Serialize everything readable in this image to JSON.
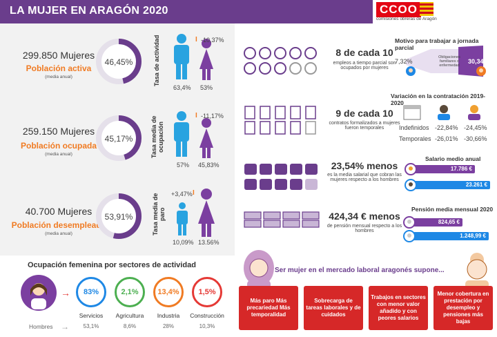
{
  "header": {
    "title": "LA MUJER EN ARAGÓN 2020",
    "logo_text": "CCOO",
    "logo_sub": "comisiones obreras de Aragón"
  },
  "blocks": [
    {
      "number": "299.850 Mujeres",
      "label": "Población activa",
      "note": "(media anual)",
      "donut": "46,45%",
      "donut_value": 46.45,
      "rate_label": "Tasa de actividad",
      "men": "63,4%",
      "women": "53%",
      "gap": "-10,37%"
    },
    {
      "number": "259.150 Mujeres",
      "label": "Población ocupada",
      "note": "(media anual)",
      "donut": "45,17%",
      "donut_value": 45.17,
      "rate_label": "Tasa media de ocupación",
      "men": "57%",
      "women": "45,83%",
      "gap": "-11,17%"
    },
    {
      "number": "40.700 Mujeres",
      "label": "Población desempleada",
      "note": "(media anual)",
      "donut": "53,91%",
      "donut_value": 53.91,
      "rate_label": "Tasa media de paro",
      "men": "10,09%",
      "women": "13.56%",
      "gap": "+3,47%"
    }
  ],
  "stats": [
    {
      "headline": "8 de cada 10",
      "sub": "empleos a tiempo parcial son ocupados por mujeres",
      "icon": "clock-icon"
    },
    {
      "headline": "9 de cada 10",
      "sub": "contratos formalizados a mujeres fueron temporales",
      "icon": "document-icon"
    },
    {
      "headline": "23,54% menos",
      "sub": "es la media salarial que cobran las mujeres respecto a los hombres",
      "icon": "coins-icon"
    },
    {
      "headline": "424,34 € menos",
      "sub": "de pensión mensual respecto a los hombres",
      "icon": "banknote-icon"
    }
  ],
  "part_time": {
    "title": "Motivo para trabajar a jornada parcial",
    "men": "7,32%",
    "women": "30,34%",
    "reason": "Obligaciones familiares o enfermedad"
  },
  "contracts": {
    "title": "Variación en la contratación 2019-2020",
    "rows": [
      {
        "label": "Indefinidos",
        "men": "-22,84%",
        "women": "-24,45%"
      },
      {
        "label": "Temporales",
        "men": "-26,01%",
        "women": "-30,66%"
      }
    ]
  },
  "salary": {
    "title": "Salario medio anual",
    "women": "17.786 €",
    "men": "23.261 €",
    "women_color": "#7b3fa0",
    "men_color": "#1e88e5"
  },
  "pension": {
    "title": "Pensión media mensual 2020",
    "women": "824,65 €",
    "men": "1.248,99 €"
  },
  "sectors": {
    "title": "Ocupación femenina por sectores de actividad",
    "men_label": "Hombres",
    "items": [
      {
        "name": "Servicios",
        "value": "83%",
        "men": "53,1%",
        "color": "#1e88e5"
      },
      {
        "name": "Agricultura",
        "value": "2,1%",
        "men": "8,6%",
        "color": "#4caf50"
      },
      {
        "name": "Industria",
        "value": "13,4%",
        "men": "28%",
        "color": "#f07b23"
      },
      {
        "name": "Construcción",
        "value": "1,5%",
        "men": "10,3%",
        "color": "#e53935"
      }
    ]
  },
  "summary": {
    "title": "Ser mujer en el mercado laboral aragonés supone...",
    "boxes": [
      "Más paro Más precariedad Más temporalidad",
      "Sobrecarga de tareas laborales y de cuidados",
      "Trabajos en sectores con menor valor añadido y con peores salarios",
      "Menor cobertura en prestación por desempleo y pensiones más bajas"
    ]
  }
}
